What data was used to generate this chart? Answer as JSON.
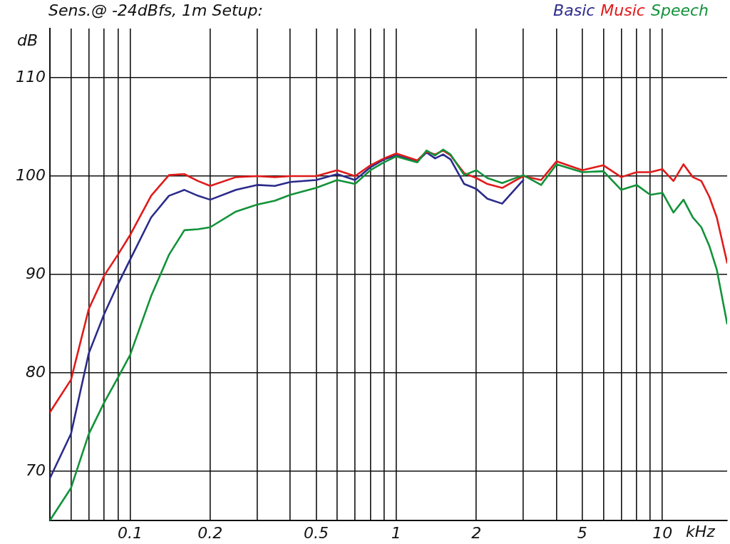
{
  "chart_data": {
    "type": "line",
    "title": "Sens.@ -24dBfs, 1m Setup:",
    "xlabel": "kHz",
    "ylabel": "dB",
    "log": "x",
    "grid": true,
    "legend": "top right",
    "marker": "none",
    "line_style": "solid",
    "xlim": [
      0.05,
      17.5
    ],
    "ylim": [
      65,
      115
    ],
    "xticks": [
      {
        "value": 0.06,
        "label": null
      },
      {
        "value": 0.07,
        "label": null
      },
      {
        "value": 0.08,
        "label": null
      },
      {
        "value": 0.09,
        "label": null
      },
      0.1,
      0.2,
      {
        "value": 0.3,
        "label": null
      },
      {
        "value": 0.4,
        "label": null
      },
      0.5,
      {
        "value": 0.6,
        "label": null
      },
      {
        "value": 0.7,
        "label": null
      },
      {
        "value": 0.8,
        "label": null
      },
      {
        "value": 0.9,
        "label": null
      },
      1,
      2,
      {
        "value": 3,
        "label": null
      },
      {
        "value": 4,
        "label": null
      },
      5,
      {
        "value": 6,
        "label": null
      },
      {
        "value": 7,
        "label": null
      },
      {
        "value": 8,
        "label": null
      },
      {
        "value": 9,
        "label": null
      },
      10
    ],
    "yticks": [
      70,
      80,
      90,
      100,
      110
    ],
    "x": [
      0.05,
      0.06,
      0.07,
      0.08,
      0.09,
      0.1,
      0.12,
      0.14,
      0.16,
      0.18,
      0.2,
      0.25,
      0.3,
      0.35,
      0.4,
      0.5,
      0.6,
      0.7,
      0.8,
      0.9,
      1,
      1.2,
      1.3,
      1.4,
      1.5,
      1.6,
      1.8,
      2,
      2.2,
      2.5,
      3,
      3.5,
      4,
      5,
      6,
      7,
      8,
      9,
      10,
      11,
      12,
      13,
      14,
      15,
      16,
      17.5
    ],
    "series": [
      {
        "name": "Basic",
        "color": "#2b2b8c",
        "values": [
          69.3,
          73.8,
          82.0,
          86.0,
          89.0,
          91.5,
          95.8,
          98.0,
          98.6,
          98.0,
          97.6,
          98.6,
          99.1,
          99.0,
          99.4,
          99.6,
          100.2,
          99.6,
          100.9,
          101.7,
          102.1,
          101.5,
          102.4,
          101.8,
          102.2,
          101.7,
          99.2,
          98.7,
          97.7,
          97.2,
          99.6,
          null,
          null,
          null,
          null,
          null,
          null,
          null,
          null,
          null,
          null,
          null,
          null,
          null,
          null,
          null
        ]
      },
      {
        "name": "Music",
        "color": "#e01b1b",
        "values": [
          76.0,
          79.3,
          86.5,
          89.9,
          92.0,
          94.0,
          98.0,
          100.1,
          100.2,
          99.5,
          99.0,
          99.9,
          100.0,
          99.9,
          100.0,
          100.0,
          100.6,
          100.0,
          101.1,
          101.8,
          102.3,
          101.6,
          102.5,
          102.2,
          102.6,
          102.1,
          100.3,
          99.8,
          99.2,
          98.8,
          100.0,
          99.6,
          101.5,
          100.6,
          101.1,
          99.9,
          100.4,
          100.4,
          100.7,
          99.5,
          101.2,
          99.9,
          99.5,
          97.9,
          95.8,
          91.2
        ]
      },
      {
        "name": "Speech",
        "color": "#12923a",
        "values": [
          65.0,
          68.3,
          73.8,
          77.0,
          79.5,
          81.8,
          87.8,
          92.0,
          94.5,
          94.6,
          94.8,
          96.4,
          97.1,
          97.5,
          98.1,
          98.8,
          99.6,
          99.2,
          100.6,
          101.4,
          102.0,
          101.4,
          102.6,
          102.1,
          102.7,
          102.2,
          100.1,
          100.6,
          99.8,
          99.3,
          100.1,
          99.1,
          101.2,
          100.4,
          100.5,
          98.6,
          99.1,
          98.1,
          98.3,
          96.3,
          97.6,
          95.8,
          94.8,
          92.9,
          90.5,
          85.0
        ]
      }
    ]
  }
}
